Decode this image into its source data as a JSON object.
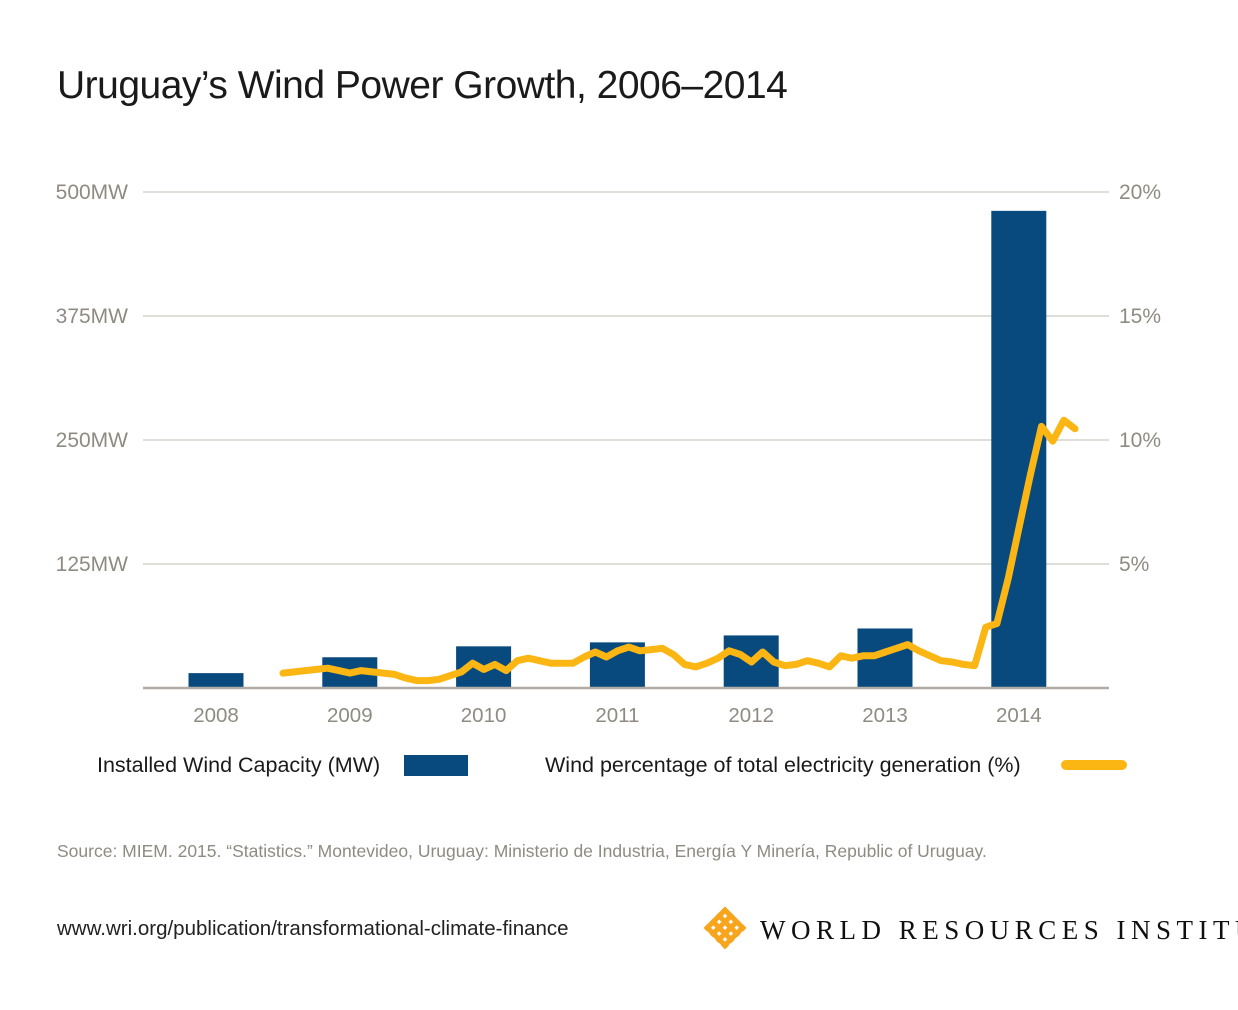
{
  "title": "Uruguay’s Wind Power Growth, 2006–2014",
  "chart_data": {
    "type": "combo bar+line",
    "title": "Uruguay’s Wind Power Growth, 2006–2014",
    "grid": "horizontal gridlines on",
    "legend_position": "bottom",
    "x_axis": {
      "ticks": [
        "2008",
        "2009",
        "2010",
        "2011",
        "2012",
        "2013",
        "2014"
      ]
    },
    "left_axis": {
      "unit": "MW",
      "min": 0,
      "max": 500,
      "ticks": [
        {
          "label": "500MW",
          "value": 500
        },
        {
          "label": "375MW",
          "value": 375
        },
        {
          "label": "250MW",
          "value": 250
        },
        {
          "label": "125MW",
          "value": 125
        }
      ]
    },
    "right_axis": {
      "unit": "%",
      "min": 0,
      "max": 20,
      "ticks": [
        {
          "label": "20%",
          "value": 20
        },
        {
          "label": "15%",
          "value": 15
        },
        {
          "label": "10%",
          "value": 10
        },
        {
          "label": "5%",
          "value": 5
        }
      ]
    },
    "series": [
      {
        "name": "Installed Wind Capacity (MW)",
        "type": "bar",
        "axis": "left",
        "categories": [
          "2008",
          "2009",
          "2010",
          "2011",
          "2012",
          "2013",
          "2014"
        ],
        "values": [
          15,
          31,
          42,
          46,
          53,
          60,
          481
        ]
      },
      {
        "name": "Wind percentage of total electricity generation (%)",
        "type": "line",
        "axis": "right",
        "x_monthly_start": "2009-01",
        "x_monthly_end": "2014-12",
        "values": [
          0.6,
          0.65,
          0.7,
          0.75,
          0.8,
          0.7,
          0.6,
          0.7,
          0.65,
          0.6,
          0.55,
          0.4,
          0.3,
          0.3,
          0.35,
          0.5,
          0.65,
          1.0,
          0.75,
          0.95,
          0.7,
          1.1,
          1.2,
          1.1,
          1.0,
          1.0,
          1.0,
          1.25,
          1.45,
          1.25,
          1.5,
          1.65,
          1.5,
          1.55,
          1.6,
          1.35,
          0.95,
          0.85,
          1.0,
          1.2,
          1.5,
          1.35,
          1.05,
          1.45,
          1.05,
          0.9,
          0.95,
          1.1,
          1.0,
          0.85,
          1.3,
          1.2,
          1.3,
          1.3,
          1.45,
          1.6,
          1.75,
          1.5,
          1.3,
          1.1,
          1.05,
          0.95,
          0.9,
          2.45,
          2.6,
          4.4,
          6.5,
          8.6,
          10.55,
          9.95,
          10.8,
          10.45
        ]
      }
    ]
  },
  "legend": {
    "items": [
      {
        "label": "Installed Wind Capacity (MW)",
        "swatch": "bar"
      },
      {
        "label": "Wind percentage of total electricity generation (%)",
        "swatch": "line"
      }
    ]
  },
  "source": "Source: MIEM. 2015. “Statistics.” Montevideo, Uruguay: Ministerio de Industria, Energía Y Minería, Republic of Uruguay.",
  "footer": {
    "url": "www.wri.org/publication/transformational-climate-finance",
    "org": "WORLD RESOURCES INSTITUTE"
  },
  "colors": {
    "bar": "#084a7d",
    "line": "#fbb614",
    "logo_gold": "#f6a51c",
    "gridline": "#d7d4ce",
    "axis_line": "#b0aca5",
    "tick_text": "#8f8b83",
    "text": "#1a1a1a"
  }
}
